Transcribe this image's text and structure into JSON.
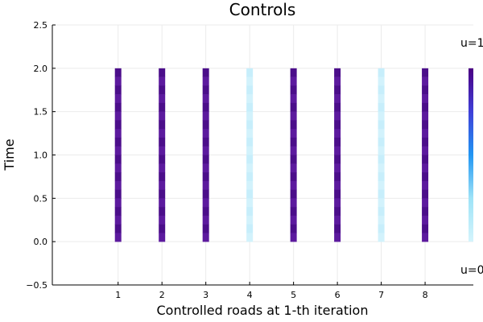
{
  "chart_data": {
    "type": "heatmap",
    "title": "Controls",
    "xlabel": "Controlled roads at 1-th iteration",
    "ylabel": "Time",
    "xlim": [
      -0.5,
      9.1
    ],
    "ylim": [
      -0.5,
      2.5
    ],
    "x_ticks": [
      "1",
      "2",
      "3",
      "4",
      "5",
      "6",
      "7",
      "8"
    ],
    "y_ticks": [
      "−0.5",
      "0.0",
      "0.5",
      "1.0",
      "1.5",
      "2.0",
      "2.5"
    ],
    "y_tick_values": [
      -0.5,
      0.0,
      0.5,
      1.0,
      1.5,
      2.0,
      2.5
    ],
    "grid": true,
    "time_range": [
      0.0,
      2.0
    ],
    "roads": [
      {
        "road": 1,
        "u": 1
      },
      {
        "road": 2,
        "u": 1
      },
      {
        "road": 3,
        "u": 1
      },
      {
        "road": 4,
        "u": 0
      },
      {
        "road": 5,
        "u": 1
      },
      {
        "road": 6,
        "u": 1
      },
      {
        "road": 7,
        "u": 0
      },
      {
        "road": 8,
        "u": 1
      }
    ],
    "colors": {
      "u1": "#4b0e8a",
      "u1_alt": "#5c1a9e",
      "u0": "#c7eefb",
      "u0_alt": "#d2f2fc"
    },
    "colorbar": {
      "top_label": "u=1",
      "bottom_label": "u=0",
      "colors": [
        "#4b0082",
        "#3f3fd8",
        "#2196f3",
        "#9ee3f7",
        "#d4f4fc"
      ]
    }
  }
}
